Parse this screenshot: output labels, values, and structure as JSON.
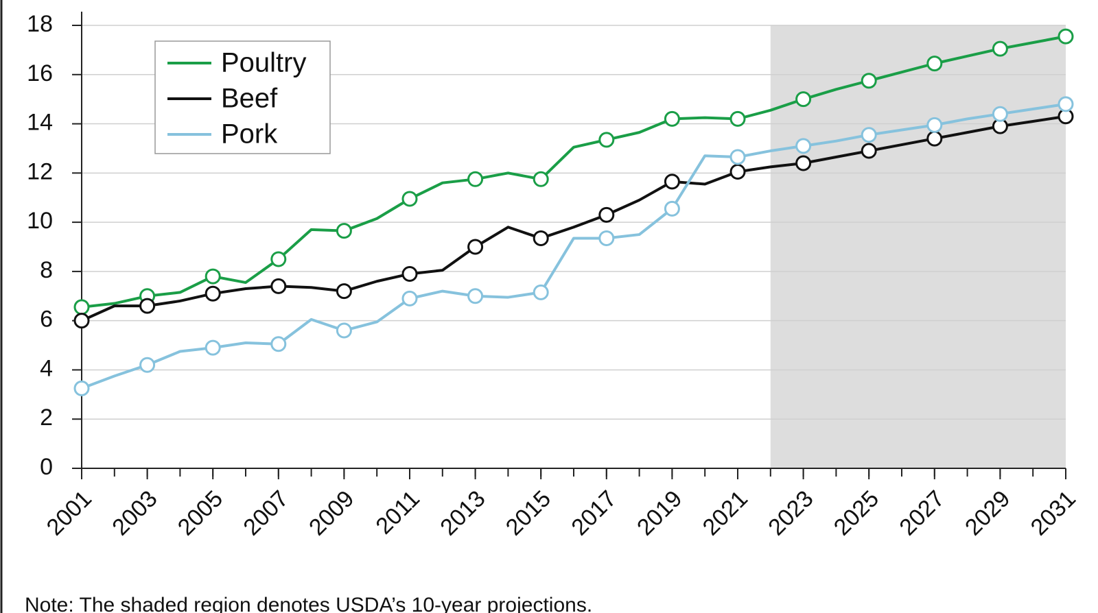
{
  "chart_data": {
    "type": "line",
    "note": "Note: The shaded region denotes USDA’s 10-year projections.",
    "x": [
      2001,
      2002,
      2003,
      2004,
      2005,
      2006,
      2007,
      2008,
      2009,
      2010,
      2011,
      2012,
      2013,
      2014,
      2015,
      2016,
      2017,
      2018,
      2019,
      2020,
      2021,
      2022,
      2023,
      2024,
      2025,
      2026,
      2027,
      2028,
      2029,
      2030,
      2031
    ],
    "series": [
      {
        "name": "Poultry",
        "color": "#1a9e47",
        "values": [
          6.55,
          6.7,
          7.0,
          7.15,
          7.8,
          7.55,
          8.5,
          9.7,
          9.65,
          10.15,
          10.95,
          11.6,
          11.75,
          12.0,
          11.75,
          13.05,
          13.35,
          13.65,
          14.2,
          14.25,
          14.2,
          14.55,
          15.0,
          15.4,
          15.75,
          16.1,
          16.45,
          16.75,
          17.05,
          17.3,
          17.55
        ]
      },
      {
        "name": "Beef",
        "color": "#111111",
        "values": [
          6.0,
          6.6,
          6.6,
          6.8,
          7.1,
          7.3,
          7.4,
          7.35,
          7.2,
          7.6,
          7.9,
          8.05,
          9.0,
          9.8,
          9.35,
          9.8,
          10.3,
          10.9,
          11.65,
          11.55,
          12.05,
          12.25,
          12.4,
          12.65,
          12.9,
          13.15,
          13.4,
          13.65,
          13.9,
          14.1,
          14.3
        ]
      },
      {
        "name": "Pork",
        "color": "#86c2dd",
        "values": [
          3.25,
          3.75,
          4.2,
          4.75,
          4.9,
          5.1,
          5.05,
          6.05,
          5.6,
          5.95,
          6.9,
          7.2,
          7.0,
          6.95,
          7.15,
          9.35,
          9.35,
          9.5,
          10.55,
          12.7,
          12.65,
          12.9,
          13.1,
          13.3,
          13.55,
          13.75,
          13.95,
          14.2,
          14.4,
          14.6,
          14.8
        ]
      }
    ],
    "xlim": [
      2001,
      2031
    ],
    "xticks": [
      2001,
      2003,
      2005,
      2007,
      2009,
      2011,
      2013,
      2015,
      2017,
      2019,
      2021,
      2023,
      2025,
      2027,
      2029,
      2031
    ],
    "ylim": [
      0,
      18
    ],
    "yticks": [
      0,
      2,
      4,
      6,
      8,
      10,
      12,
      14,
      16,
      18
    ],
    "grid": true,
    "shaded_region": [
      2022,
      2031
    ],
    "shaded_color": "#dddddd",
    "legend": "upper left"
  }
}
